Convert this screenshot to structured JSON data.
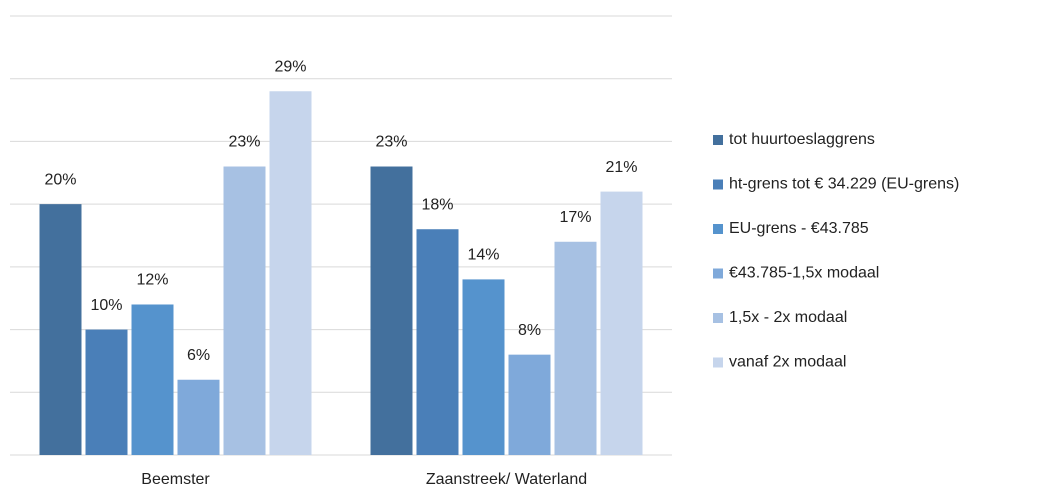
{
  "chart_data": {
    "type": "bar",
    "categories": [
      "Beemster",
      "Zaanstreek/ Waterland"
    ],
    "series": [
      {
        "name": "tot huurtoeslaggrens",
        "color": "#43709d",
        "values": [
          20,
          23
        ],
        "value_labels": [
          "20%",
          "23%"
        ]
      },
      {
        "name": "ht-grens tot € 34.229 (EU-grens)",
        "color": "#4a7fb8",
        "values": [
          10,
          18
        ],
        "value_labels": [
          "10%",
          "18%"
        ]
      },
      {
        "name": "EU-grens - €43.785",
        "color": "#5593cd",
        "values": [
          12,
          14
        ],
        "value_labels": [
          "12%",
          "14%"
        ]
      },
      {
        "name": "€43.785-1,5x modaal",
        "color": "#7fa9da",
        "values": [
          6,
          8
        ],
        "value_labels": [
          "6%",
          "8%"
        ]
      },
      {
        "name": "1,5x - 2x modaal",
        "color": "#a7c1e3",
        "values": [
          23,
          17
        ],
        "value_labels": [
          "23%",
          "17%"
        ]
      },
      {
        "name": "vanaf 2x modaal",
        "color": "#c6d5ec",
        "values": [
          29,
          21
        ],
        "value_labels": [
          "29%",
          "21%"
        ]
      }
    ],
    "ylim": [
      0,
      35
    ],
    "yticks": [
      0,
      5,
      10,
      15,
      20,
      25,
      30,
      35
    ],
    "grid": true,
    "legend": "right"
  }
}
